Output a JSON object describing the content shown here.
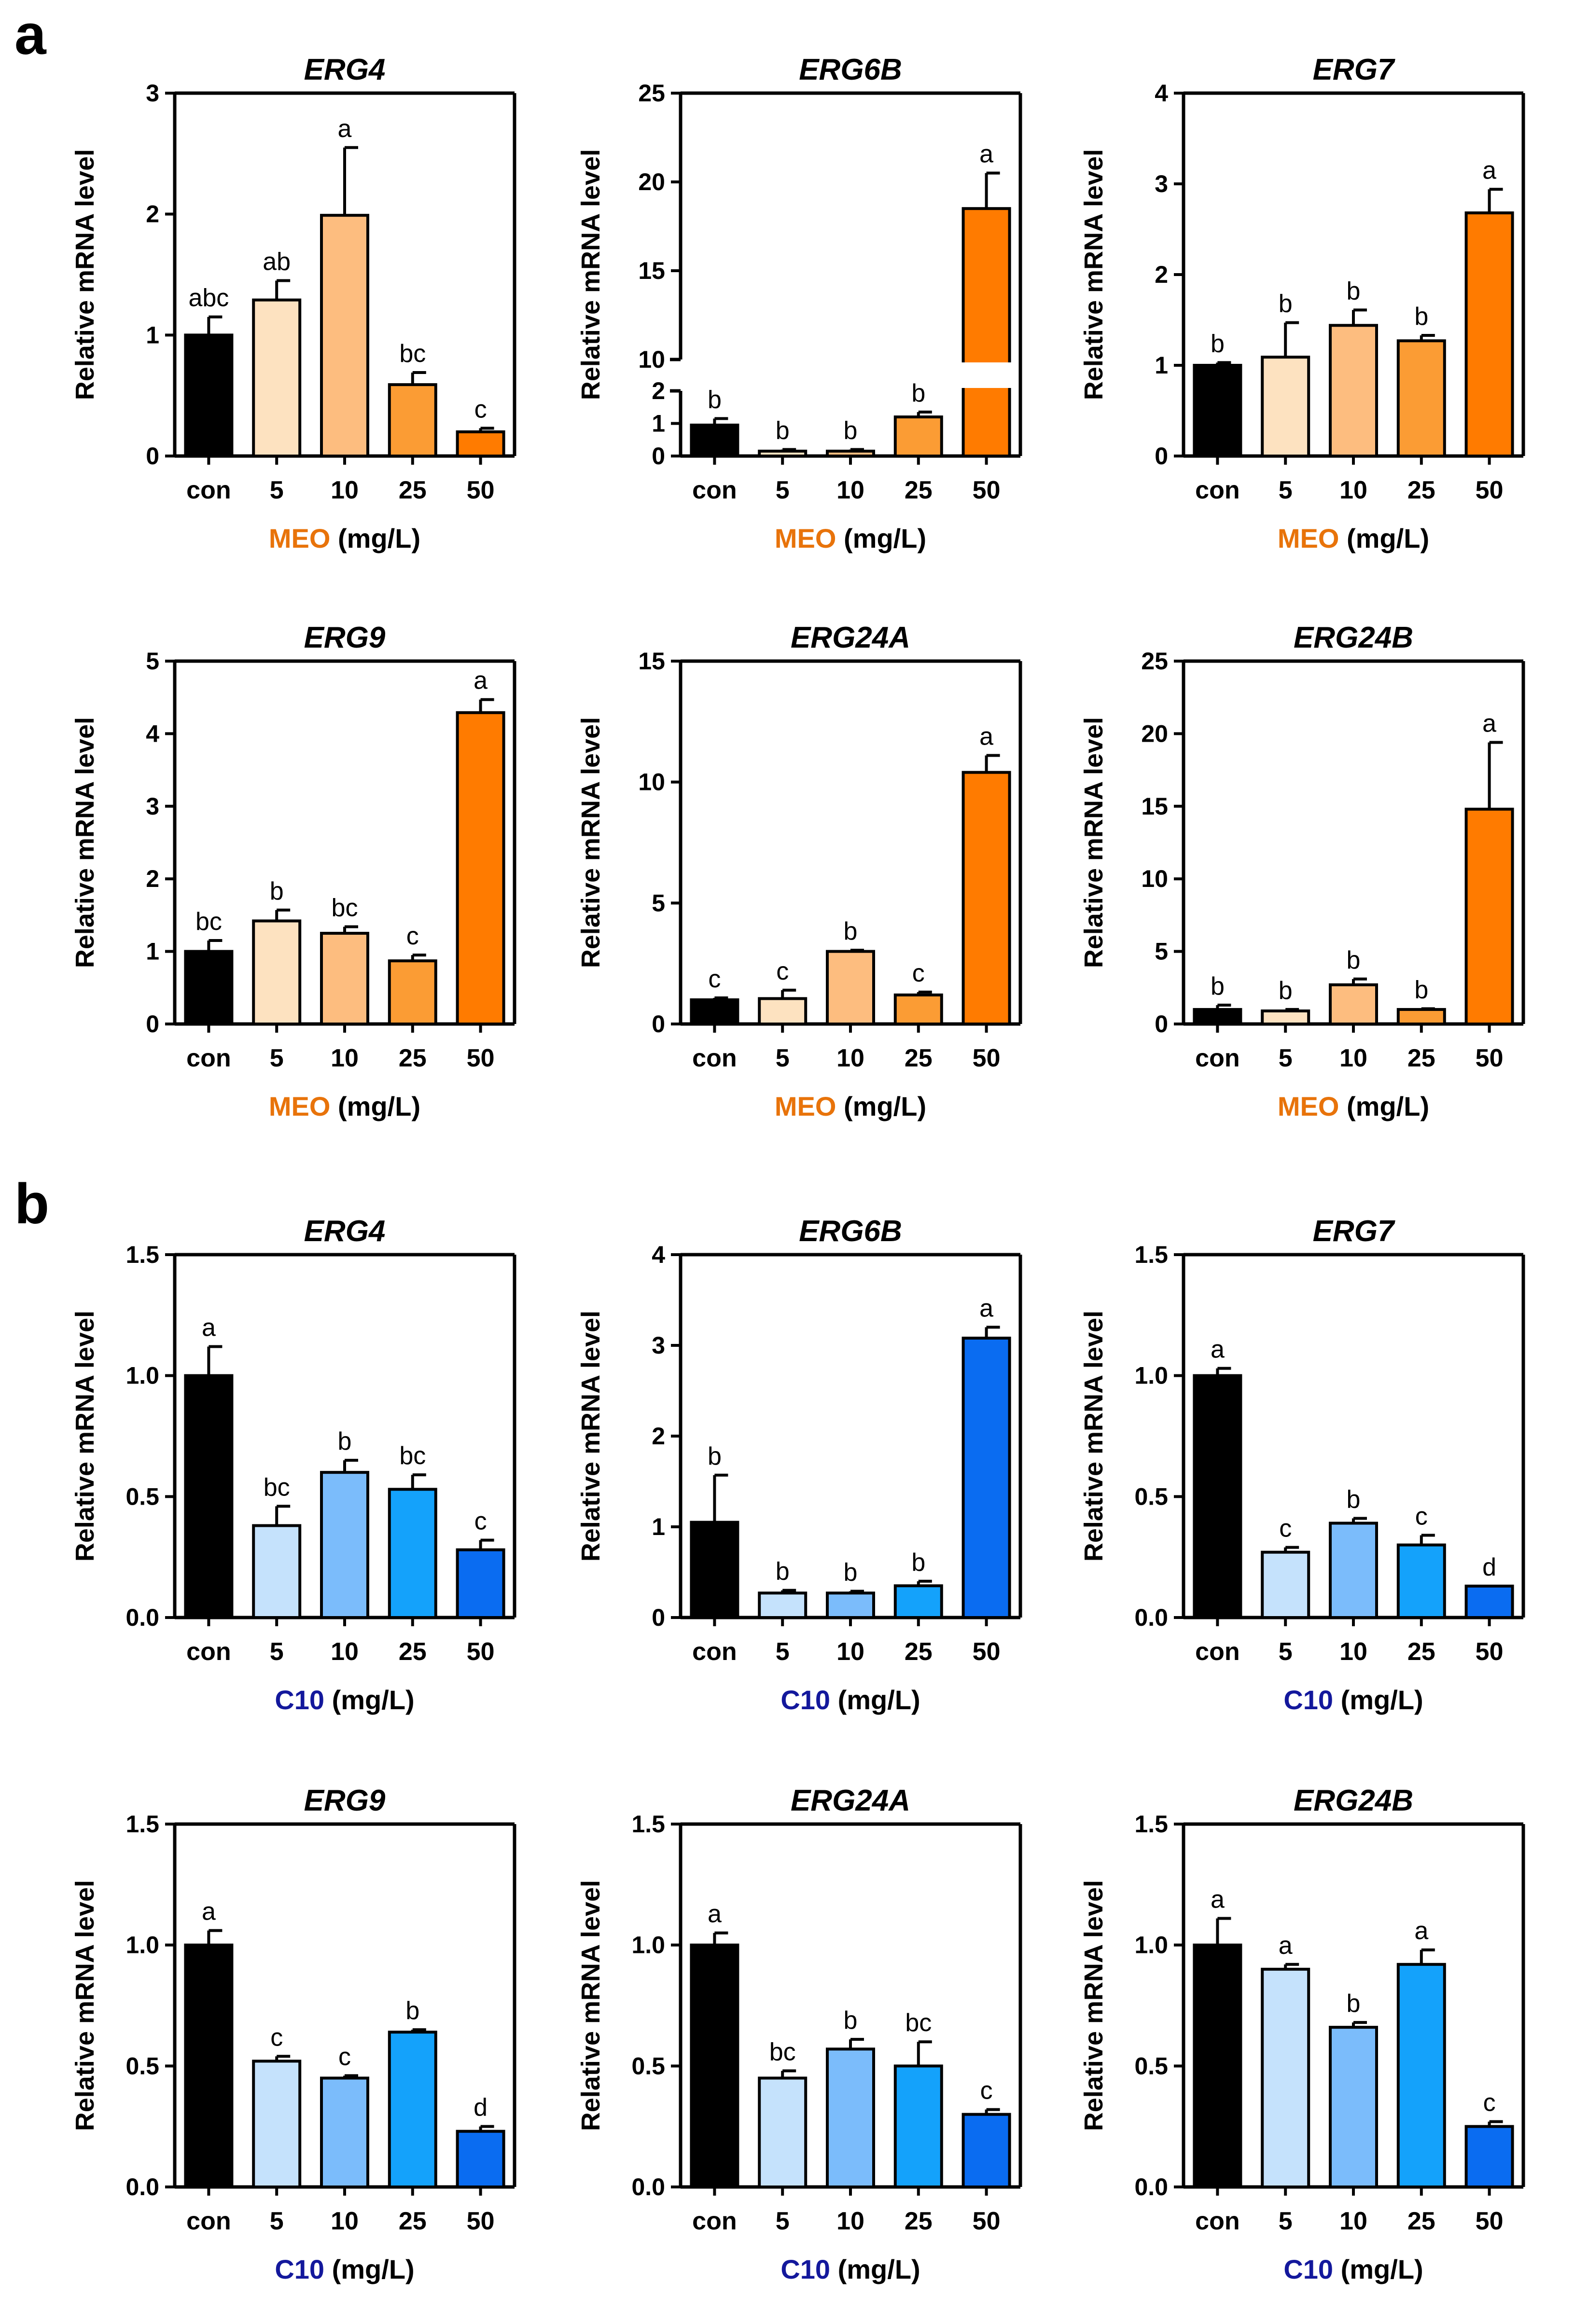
{
  "panel_labels": [
    "a",
    "b"
  ],
  "chart_data": [
    {
      "type": "bar",
      "panel": "a",
      "title": "ERG4",
      "categories": [
        "con",
        "5",
        "10",
        "25",
        "50"
      ],
      "values": [
        1.0,
        1.29,
        1.99,
        0.59,
        0.2
      ],
      "errors": [
        0.15,
        0.16,
        0.56,
        0.1,
        0.03
      ],
      "letters": [
        "abc",
        "ab",
        "a",
        "bc",
        "c"
      ],
      "ylabel": "Relative mRNA level",
      "xlabel": {
        "treatment": "MEO",
        "unit": " (mg/L)"
      },
      "ylim": [
        0,
        3
      ],
      "yticks": [
        "0",
        "1",
        "2",
        "3"
      ],
      "colors": [
        "#000000",
        "#fde2c0",
        "#fdbd7f",
        "#fb9c34",
        "#ff7b00"
      ]
    },
    {
      "type": "bar",
      "panel": "a",
      "title": "ERG6B",
      "categories": [
        "con",
        "5",
        "10",
        "25",
        "50"
      ],
      "values": [
        0.95,
        0.15,
        0.15,
        1.2,
        18.5
      ],
      "errors": [
        0.2,
        0.05,
        0.05,
        0.15,
        2.0
      ],
      "letters": [
        "b",
        "b",
        "b",
        "b",
        "a"
      ],
      "ylabel": "Relative mRNA level",
      "xlabel": {
        "treatment": "MEO",
        "unit": " (mg/L)"
      },
      "broken_axis": {
        "lower": [
          0,
          2
        ],
        "upper": [
          10,
          25
        ]
      },
      "yticks": [
        "0",
        "1",
        "2",
        "10",
        "15",
        "20",
        "25"
      ],
      "colors": [
        "#000000",
        "#fde2c0",
        "#fdbd7f",
        "#fb9c34",
        "#ff7b00"
      ]
    },
    {
      "type": "bar",
      "panel": "a",
      "title": "ERG7",
      "categories": [
        "con",
        "5",
        "10",
        "25",
        "50"
      ],
      "values": [
        1.0,
        1.09,
        1.44,
        1.27,
        2.68
      ],
      "errors": [
        0.03,
        0.38,
        0.17,
        0.06,
        0.26
      ],
      "letters": [
        "b",
        "b",
        "b",
        "b",
        "a"
      ],
      "ylabel": "Relative mRNA level",
      "xlabel": {
        "treatment": "MEO",
        "unit": " (mg/L)"
      },
      "ylim": [
        0,
        4
      ],
      "yticks": [
        "0",
        "1",
        "2",
        "3",
        "4"
      ],
      "colors": [
        "#000000",
        "#fde2c0",
        "#fdbd7f",
        "#fb9c34",
        "#ff7b00"
      ]
    },
    {
      "type": "bar",
      "panel": "a",
      "title": "ERG9",
      "categories": [
        "con",
        "5",
        "10",
        "25",
        "50"
      ],
      "values": [
        1.0,
        1.42,
        1.25,
        0.87,
        4.29
      ],
      "errors": [
        0.15,
        0.15,
        0.09,
        0.08,
        0.18
      ],
      "letters": [
        "bc",
        "b",
        "bc",
        "c",
        "a"
      ],
      "ylabel": "Relative mRNA level",
      "xlabel": {
        "treatment": "MEO",
        "unit": " (mg/L)"
      },
      "ylim": [
        0,
        5
      ],
      "yticks": [
        "0",
        "1",
        "2",
        "3",
        "4",
        "5"
      ],
      "colors": [
        "#000000",
        "#fde2c0",
        "#fdbd7f",
        "#fb9c34",
        "#ff7b00"
      ]
    },
    {
      "type": "bar",
      "panel": "a",
      "title": "ERG24A",
      "categories": [
        "con",
        "5",
        "10",
        "25",
        "50"
      ],
      "values": [
        1.0,
        1.05,
        3.0,
        1.2,
        10.4
      ],
      "errors": [
        0.08,
        0.35,
        0.05,
        0.12,
        0.7
      ],
      "letters": [
        "c",
        "c",
        "b",
        "c",
        "a"
      ],
      "ylabel": "Relative mRNA level",
      "xlabel": {
        "treatment": "MEO",
        "unit": " (mg/L)"
      },
      "ylim": [
        0,
        15
      ],
      "yticks": [
        "0",
        "5",
        "10",
        "15"
      ],
      "colors": [
        "#000000",
        "#fde2c0",
        "#fdbd7f",
        "#fb9c34",
        "#ff7b00"
      ]
    },
    {
      "type": "bar",
      "panel": "a",
      "title": "ERG24B",
      "categories": [
        "con",
        "5",
        "10",
        "25",
        "50"
      ],
      "values": [
        1.0,
        0.9,
        2.7,
        1.0,
        14.8
      ],
      "errors": [
        0.3,
        0.1,
        0.4,
        0.05,
        4.6
      ],
      "letters": [
        "b",
        "b",
        "b",
        "b",
        "a"
      ],
      "ylabel": "Relative mRNA level",
      "xlabel": {
        "treatment": "MEO",
        "unit": " (mg/L)"
      },
      "ylim": [
        0,
        25
      ],
      "yticks": [
        "0",
        "5",
        "10",
        "15",
        "20",
        "25"
      ],
      "colors": [
        "#000000",
        "#fde2c0",
        "#fdbd7f",
        "#fb9c34",
        "#ff7b00"
      ]
    },
    {
      "type": "bar",
      "panel": "b",
      "title": "ERG4",
      "categories": [
        "con",
        "5",
        "10",
        "25",
        "50"
      ],
      "values": [
        1.0,
        0.38,
        0.6,
        0.53,
        0.28
      ],
      "errors": [
        0.12,
        0.08,
        0.05,
        0.06,
        0.04
      ],
      "letters": [
        "a",
        "bc",
        "b",
        "bc",
        "c"
      ],
      "ylabel": "Relative mRNA level",
      "xlabel": {
        "treatment": "C10",
        "unit": " (mg/L)"
      },
      "ylim": [
        0,
        1.5
      ],
      "yticks": [
        "0.0",
        "0.5",
        "1.0",
        "1.5"
      ],
      "colors": [
        "#000000",
        "#c5e2fc",
        "#7bbcfb",
        "#14a2fb",
        "#0a6cf1"
      ]
    },
    {
      "type": "bar",
      "panel": "b",
      "title": "ERG6B",
      "categories": [
        "con",
        "5",
        "10",
        "25",
        "50"
      ],
      "values": [
        1.05,
        0.27,
        0.27,
        0.35,
        3.08
      ],
      "errors": [
        0.52,
        0.03,
        0.02,
        0.05,
        0.12
      ],
      "letters": [
        "b",
        "b",
        "b",
        "b",
        "a"
      ],
      "ylabel": "Relative mRNA level",
      "xlabel": {
        "treatment": "C10",
        "unit": " (mg/L)"
      },
      "ylim": [
        0,
        4
      ],
      "yticks": [
        "0",
        "1",
        "2",
        "3",
        "4"
      ],
      "colors": [
        "#000000",
        "#c5e2fc",
        "#7bbcfb",
        "#14a2fb",
        "#0a6cf1"
      ]
    },
    {
      "type": "bar",
      "panel": "b",
      "title": "ERG7",
      "categories": [
        "con",
        "5",
        "10",
        "25",
        "50"
      ],
      "values": [
        1.0,
        0.27,
        0.39,
        0.3,
        0.13
      ],
      "errors": [
        0.03,
        0.02,
        0.02,
        0.04,
        0.0
      ],
      "letters": [
        "a",
        "c",
        "b",
        "c",
        "d"
      ],
      "ylabel": "Relative mRNA level",
      "xlabel": {
        "treatment": "C10",
        "unit": " (mg/L)"
      },
      "ylim": [
        0,
        1.5
      ],
      "yticks": [
        "0.0",
        "0.5",
        "1.0",
        "1.5"
      ],
      "colors": [
        "#000000",
        "#c5e2fc",
        "#7bbcfb",
        "#14a2fb",
        "#0a6cf1"
      ]
    },
    {
      "type": "bar",
      "panel": "b",
      "title": "ERG9",
      "categories": [
        "con",
        "5",
        "10",
        "25",
        "50"
      ],
      "values": [
        1.0,
        0.52,
        0.45,
        0.64,
        0.23
      ],
      "errors": [
        0.06,
        0.02,
        0.01,
        0.01,
        0.02
      ],
      "letters": [
        "a",
        "c",
        "c",
        "b",
        "d"
      ],
      "ylabel": "Relative mRNA level",
      "xlabel": {
        "treatment": "C10",
        "unit": " (mg/L)"
      },
      "ylim": [
        0,
        1.5
      ],
      "yticks": [
        "0.0",
        "0.5",
        "1.0",
        "1.5"
      ],
      "colors": [
        "#000000",
        "#c5e2fc",
        "#7bbcfb",
        "#14a2fb",
        "#0a6cf1"
      ]
    },
    {
      "type": "bar",
      "panel": "b",
      "title": "ERG24A",
      "categories": [
        "con",
        "5",
        "10",
        "25",
        "50"
      ],
      "values": [
        1.0,
        0.45,
        0.57,
        0.5,
        0.3
      ],
      "errors": [
        0.05,
        0.03,
        0.04,
        0.1,
        0.02
      ],
      "letters": [
        "a",
        "bc",
        "b",
        "bc",
        "c"
      ],
      "ylabel": "Relative mRNA level",
      "xlabel": {
        "treatment": "C10",
        "unit": " (mg/L)"
      },
      "ylim": [
        0,
        1.5
      ],
      "yticks": [
        "0.0",
        "0.5",
        "1.0",
        "1.5"
      ],
      "colors": [
        "#000000",
        "#c5e2fc",
        "#7bbcfb",
        "#14a2fb",
        "#0a6cf1"
      ]
    },
    {
      "type": "bar",
      "panel": "b",
      "title": "ERG24B",
      "categories": [
        "con",
        "5",
        "10",
        "25",
        "50"
      ],
      "values": [
        1.0,
        0.9,
        0.66,
        0.92,
        0.25
      ],
      "errors": [
        0.11,
        0.02,
        0.02,
        0.06,
        0.02
      ],
      "letters": [
        "a",
        "a",
        "b",
        "a",
        "c"
      ],
      "ylabel": "Relative mRNA level",
      "xlabel": {
        "treatment": "C10",
        "unit": " (mg/L)"
      },
      "ylim": [
        0,
        1.5
      ],
      "yticks": [
        "0.0",
        "0.5",
        "1.0",
        "1.5"
      ],
      "colors": [
        "#000000",
        "#c5e2fc",
        "#7bbcfb",
        "#14a2fb",
        "#0a6cf1"
      ]
    }
  ],
  "treatment_colors": {
    "MEO": "#e8730a",
    "C10": "#13189c"
  }
}
